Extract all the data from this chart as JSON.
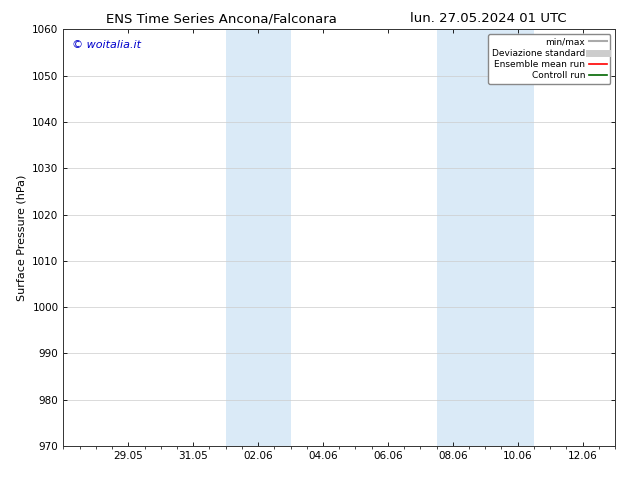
{
  "title_left": "ENS Time Series Ancona/Falconara",
  "title_right": "lun. 27.05.2024 01 UTC",
  "ylabel": "Surface Pressure (hPa)",
  "ylim": [
    970,
    1060
  ],
  "yticks": [
    970,
    980,
    990,
    1000,
    1010,
    1020,
    1030,
    1040,
    1050,
    1060
  ],
  "xtick_labels": [
    "29.05",
    "31.05",
    "02.06",
    "04.06",
    "06.06",
    "08.06",
    "10.06",
    "12.06"
  ],
  "xtick_positions": [
    2,
    4,
    6,
    8,
    10,
    12,
    14,
    16
  ],
  "xlim": [
    0,
    17
  ],
  "band1_start": 5.0,
  "band1_end": 7.0,
  "band2_start": 11.5,
  "band2_end": 14.5,
  "shaded_color": "#daeaf7",
  "watermark_text": "© woitalia.it",
  "watermark_color": "#0000cc",
  "legend_items": [
    {
      "label": "min/max",
      "color": "#aaaaaa",
      "lw": 1.5,
      "style": "solid"
    },
    {
      "label": "Deviazione standard",
      "color": "#cccccc",
      "lw": 5,
      "style": "solid"
    },
    {
      "label": "Ensemble mean run",
      "color": "#ff0000",
      "lw": 1.2,
      "style": "solid"
    },
    {
      "label": "Controll run",
      "color": "#006600",
      "lw": 1.2,
      "style": "solid"
    }
  ],
  "background_color": "#ffffff",
  "grid_color": "#cccccc",
  "title_fontsize": 9.5,
  "tick_fontsize": 7.5,
  "ylabel_fontsize": 8,
  "watermark_fontsize": 8,
  "legend_fontsize": 6.5
}
